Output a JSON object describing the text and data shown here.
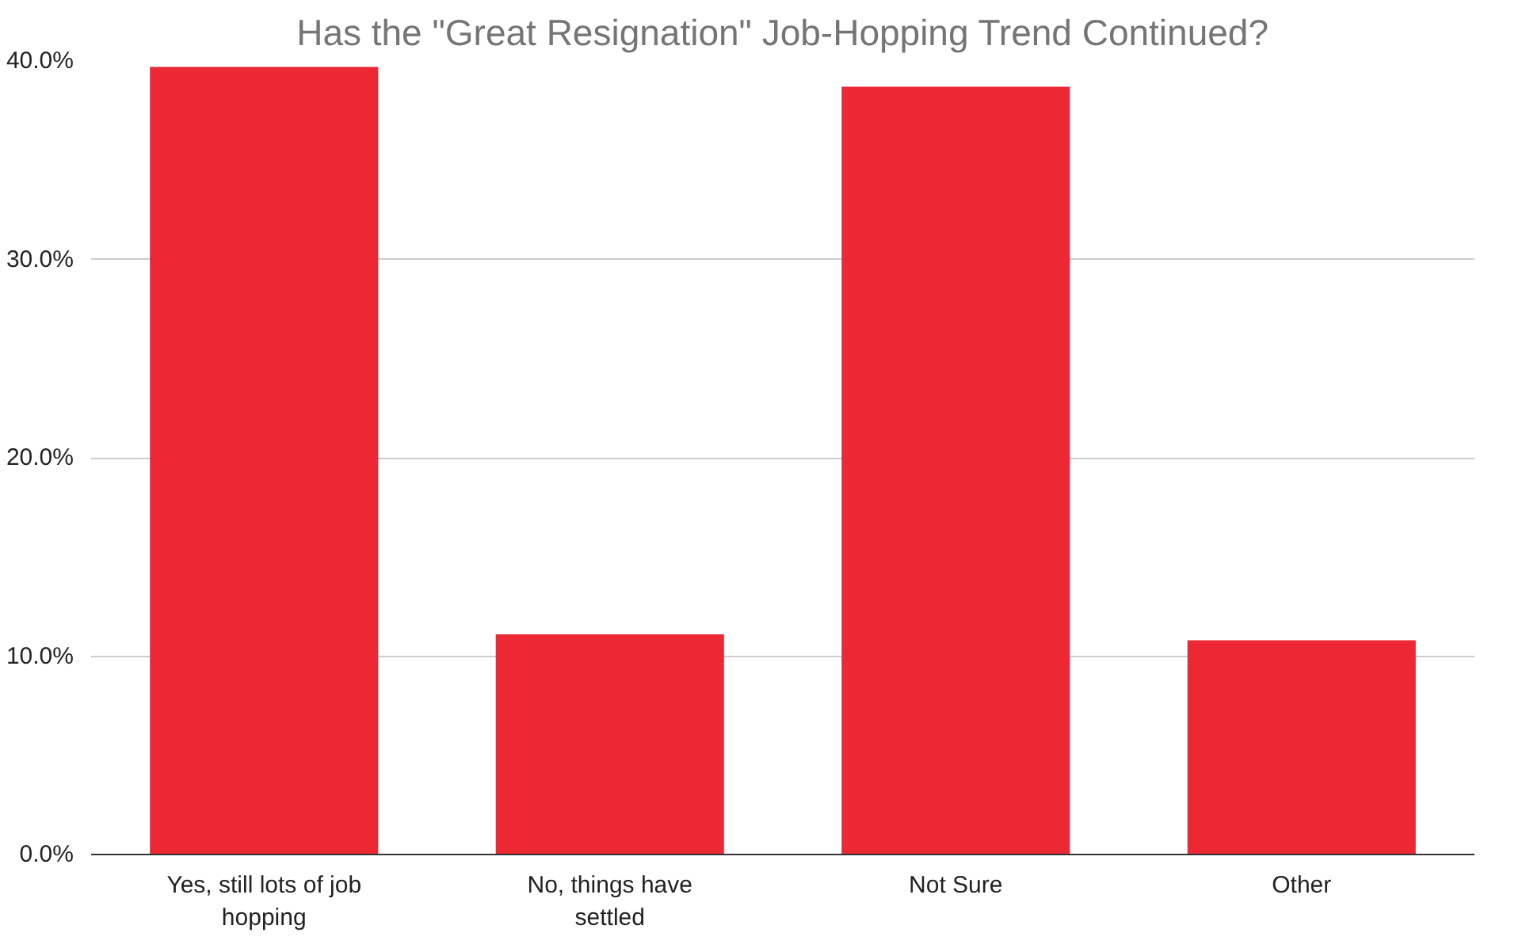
{
  "chart_data": {
    "type": "bar",
    "title": "Has the \"Great Resignation\" Job-Hopping Trend Continued?",
    "categories": [
      "Yes, still lots of job hopping",
      "No, things have settled",
      "Not Sure",
      "Other"
    ],
    "values": [
      39.7,
      11.1,
      38.7,
      10.8
    ],
    "color": "#eb2833",
    "ylim": [
      0,
      40
    ],
    "yticks": [
      {
        "value": 0,
        "label": "0.0%"
      },
      {
        "value": 10,
        "label": "10.0%"
      },
      {
        "value": 20,
        "label": "20.0%"
      },
      {
        "value": 30,
        "label": "30.0%"
      },
      {
        "value": 40,
        "label": "40.0%"
      }
    ],
    "grid": "y"
  }
}
